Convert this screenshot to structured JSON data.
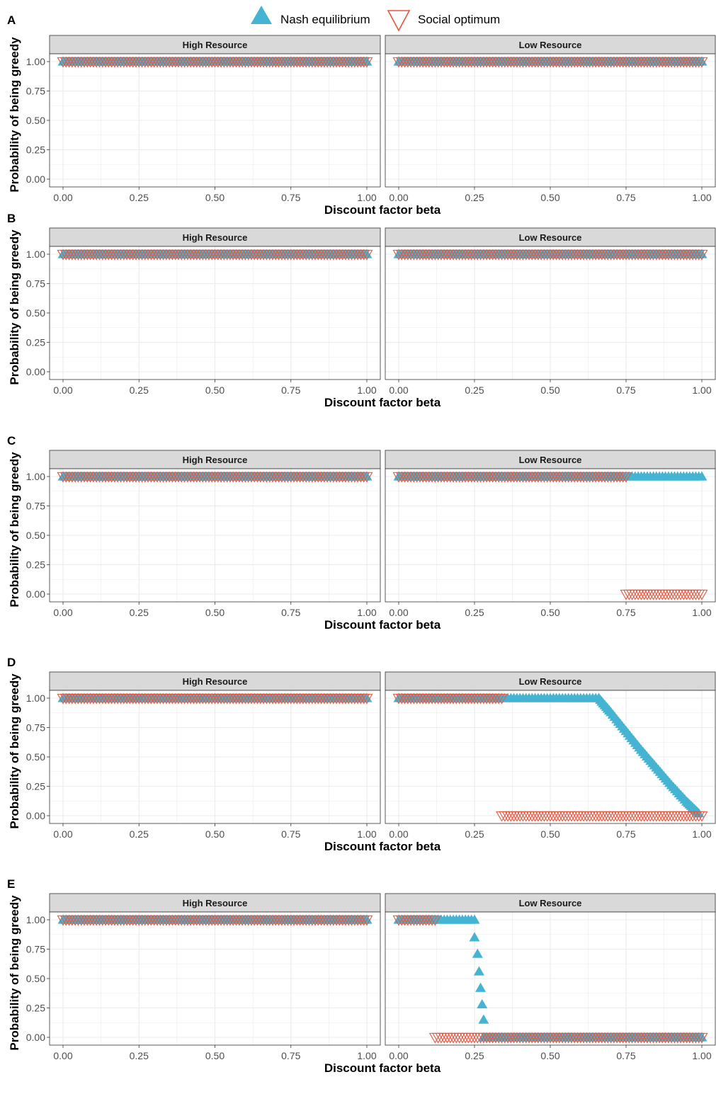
{
  "legend": {
    "entries": [
      {
        "label": "Nash equilibrium",
        "shape": "triangle-up-filled",
        "color": "#45b4d2"
      },
      {
        "label": "Social optimum",
        "shape": "triangle-down-open",
        "color": "#e8553e"
      }
    ]
  },
  "colors": {
    "nash": "#45b4d2",
    "social": "#e8553e",
    "strip_fill": "#d9d9d9",
    "grid": "#ebebeb"
  },
  "chart_data": [
    {
      "type": "scatter",
      "panel_label": "A",
      "xlabel": "Discount factor beta",
      "ylabel": "Probability of being greedy",
      "xlim": [
        0,
        1
      ],
      "ylim": [
        0,
        1
      ],
      "xticks": [
        "0.00",
        "0.25",
        "0.50",
        "0.75",
        "1.00"
      ],
      "yticks": [
        "0.00",
        "0.25",
        "0.50",
        "0.75",
        "1.00"
      ],
      "facets": [
        {
          "title": "High Resource",
          "series": [
            {
              "name": "Nash equilibrium",
              "segments": [
                {
                  "type": "constant",
                  "x": [
                    0,
                    1
                  ],
                  "y": 1
                }
              ]
            },
            {
              "name": "Social optimum",
              "segments": [
                {
                  "type": "constant",
                  "x": [
                    0,
                    1
                  ],
                  "y": 1
                }
              ]
            }
          ]
        },
        {
          "title": "Low Resource",
          "series": [
            {
              "name": "Nash equilibrium",
              "segments": [
                {
                  "type": "constant",
                  "x": [
                    0,
                    1
                  ],
                  "y": 1
                }
              ]
            },
            {
              "name": "Social optimum",
              "segments": [
                {
                  "type": "constant",
                  "x": [
                    0,
                    1
                  ],
                  "y": 1
                }
              ]
            }
          ]
        }
      ]
    },
    {
      "type": "scatter",
      "panel_label": "B",
      "xlabel": "Discount factor beta",
      "ylabel": "Probability of being greedy",
      "xlim": [
        0,
        1
      ],
      "ylim": [
        0,
        1
      ],
      "xticks": [
        "0.00",
        "0.25",
        "0.50",
        "0.75",
        "1.00"
      ],
      "yticks": [
        "0.00",
        "0.25",
        "0.50",
        "0.75",
        "1.00"
      ],
      "facets": [
        {
          "title": "High Resource",
          "series": [
            {
              "name": "Nash equilibrium",
              "segments": [
                {
                  "type": "constant",
                  "x": [
                    0,
                    1
                  ],
                  "y": 1
                }
              ]
            },
            {
              "name": "Social optimum",
              "segments": [
                {
                  "type": "constant",
                  "x": [
                    0,
                    1
                  ],
                  "y": 1
                }
              ]
            }
          ]
        },
        {
          "title": "Low Resource",
          "series": [
            {
              "name": "Nash equilibrium",
              "segments": [
                {
                  "type": "constant",
                  "x": [
                    0,
                    1
                  ],
                  "y": 1
                }
              ]
            },
            {
              "name": "Social optimum",
              "segments": [
                {
                  "type": "constant",
                  "x": [
                    0,
                    1
                  ],
                  "y": 1
                }
              ]
            }
          ]
        }
      ]
    },
    {
      "type": "scatter",
      "panel_label": "C",
      "xlabel": "Discount factor beta",
      "ylabel": "Probability of being greedy",
      "xlim": [
        0,
        1
      ],
      "ylim": [
        0,
        1
      ],
      "xticks": [
        "0.00",
        "0.25",
        "0.50",
        "0.75",
        "1.00"
      ],
      "yticks": [
        "0.00",
        "0.25",
        "0.50",
        "0.75",
        "1.00"
      ],
      "facets": [
        {
          "title": "High Resource",
          "series": [
            {
              "name": "Nash equilibrium",
              "segments": [
                {
                  "type": "constant",
                  "x": [
                    0,
                    1
                  ],
                  "y": 1
                }
              ]
            },
            {
              "name": "Social optimum",
              "segments": [
                {
                  "type": "constant",
                  "x": [
                    0,
                    1
                  ],
                  "y": 1
                }
              ]
            }
          ]
        },
        {
          "title": "Low Resource",
          "series": [
            {
              "name": "Nash equilibrium",
              "segments": [
                {
                  "type": "constant",
                  "x": [
                    0,
                    1
                  ],
                  "y": 1
                }
              ]
            },
            {
              "name": "Social optimum",
              "segments": [
                {
                  "type": "constant",
                  "x": [
                    0,
                    0.75
                  ],
                  "y": 1
                },
                {
                  "type": "constant",
                  "x": [
                    0.75,
                    1
                  ],
                  "y": 0
                }
              ]
            }
          ]
        }
      ]
    },
    {
      "type": "scatter",
      "panel_label": "D",
      "xlabel": "Discount factor beta",
      "ylabel": "Probability of being greedy",
      "xlim": [
        0,
        1
      ],
      "ylim": [
        0,
        1
      ],
      "xticks": [
        "0.00",
        "0.25",
        "0.50",
        "0.75",
        "1.00"
      ],
      "yticks": [
        "0.00",
        "0.25",
        "0.50",
        "0.75",
        "1.00"
      ],
      "facets": [
        {
          "title": "High Resource",
          "series": [
            {
              "name": "Nash equilibrium",
              "segments": [
                {
                  "type": "constant",
                  "x": [
                    0,
                    1
                  ],
                  "y": 1
                }
              ]
            },
            {
              "name": "Social optimum",
              "segments": [
                {
                  "type": "constant",
                  "x": [
                    0,
                    1
                  ],
                  "y": 1
                }
              ]
            }
          ]
        },
        {
          "title": "Low Resource",
          "series": [
            {
              "name": "Nash equilibrium",
              "segments": [
                {
                  "type": "constant",
                  "x": [
                    0,
                    0.66
                  ],
                  "y": 1
                },
                {
                  "type": "curve",
                  "points": [
                    [
                      0.66,
                      1.0
                    ],
                    [
                      0.7,
                      0.88
                    ],
                    [
                      0.75,
                      0.72
                    ],
                    [
                      0.8,
                      0.56
                    ],
                    [
                      0.85,
                      0.41
                    ],
                    [
                      0.9,
                      0.26
                    ],
                    [
                      0.95,
                      0.12
                    ],
                    [
                      0.99,
                      0.02
                    ]
                  ]
                }
              ]
            },
            {
              "name": "Social optimum",
              "segments": [
                {
                  "type": "constant",
                  "x": [
                    0,
                    0.34
                  ],
                  "y": 1
                },
                {
                  "type": "constant",
                  "x": [
                    0.34,
                    1
                  ],
                  "y": 0
                }
              ]
            }
          ]
        }
      ]
    },
    {
      "type": "scatter",
      "panel_label": "E",
      "xlabel": "Discount factor beta",
      "ylabel": "Probability of being greedy",
      "xlim": [
        0,
        1
      ],
      "ylim": [
        0,
        1
      ],
      "xticks": [
        "0.00",
        "0.25",
        "0.50",
        "0.75",
        "1.00"
      ],
      "yticks": [
        "0.00",
        "0.25",
        "0.50",
        "0.75",
        "1.00"
      ],
      "facets": [
        {
          "title": "High Resource",
          "series": [
            {
              "name": "Nash equilibrium",
              "segments": [
                {
                  "type": "constant",
                  "x": [
                    0,
                    1
                  ],
                  "y": 1
                }
              ]
            },
            {
              "name": "Social optimum",
              "segments": [
                {
                  "type": "constant",
                  "x": [
                    0,
                    1
                  ],
                  "y": 1
                }
              ]
            }
          ]
        },
        {
          "title": "Low Resource",
          "series": [
            {
              "name": "Nash equilibrium",
              "segments": [
                {
                  "type": "constant",
                  "x": [
                    0,
                    0.25
                  ],
                  "y": 1
                },
                {
                  "type": "points",
                  "points": [
                    [
                      0.25,
                      0.85
                    ],
                    [
                      0.26,
                      0.71
                    ],
                    [
                      0.265,
                      0.56
                    ],
                    [
                      0.27,
                      0.42
                    ],
                    [
                      0.275,
                      0.28
                    ],
                    [
                      0.28,
                      0.15
                    ]
                  ]
                },
                {
                  "type": "constant",
                  "x": [
                    0.28,
                    1
                  ],
                  "y": 0
                }
              ]
            },
            {
              "name": "Social optimum",
              "segments": [
                {
                  "type": "constant",
                  "x": [
                    0,
                    0.12
                  ],
                  "y": 1
                },
                {
                  "type": "constant",
                  "x": [
                    0.12,
                    1
                  ],
                  "y": 0
                }
              ]
            }
          ]
        }
      ]
    }
  ]
}
